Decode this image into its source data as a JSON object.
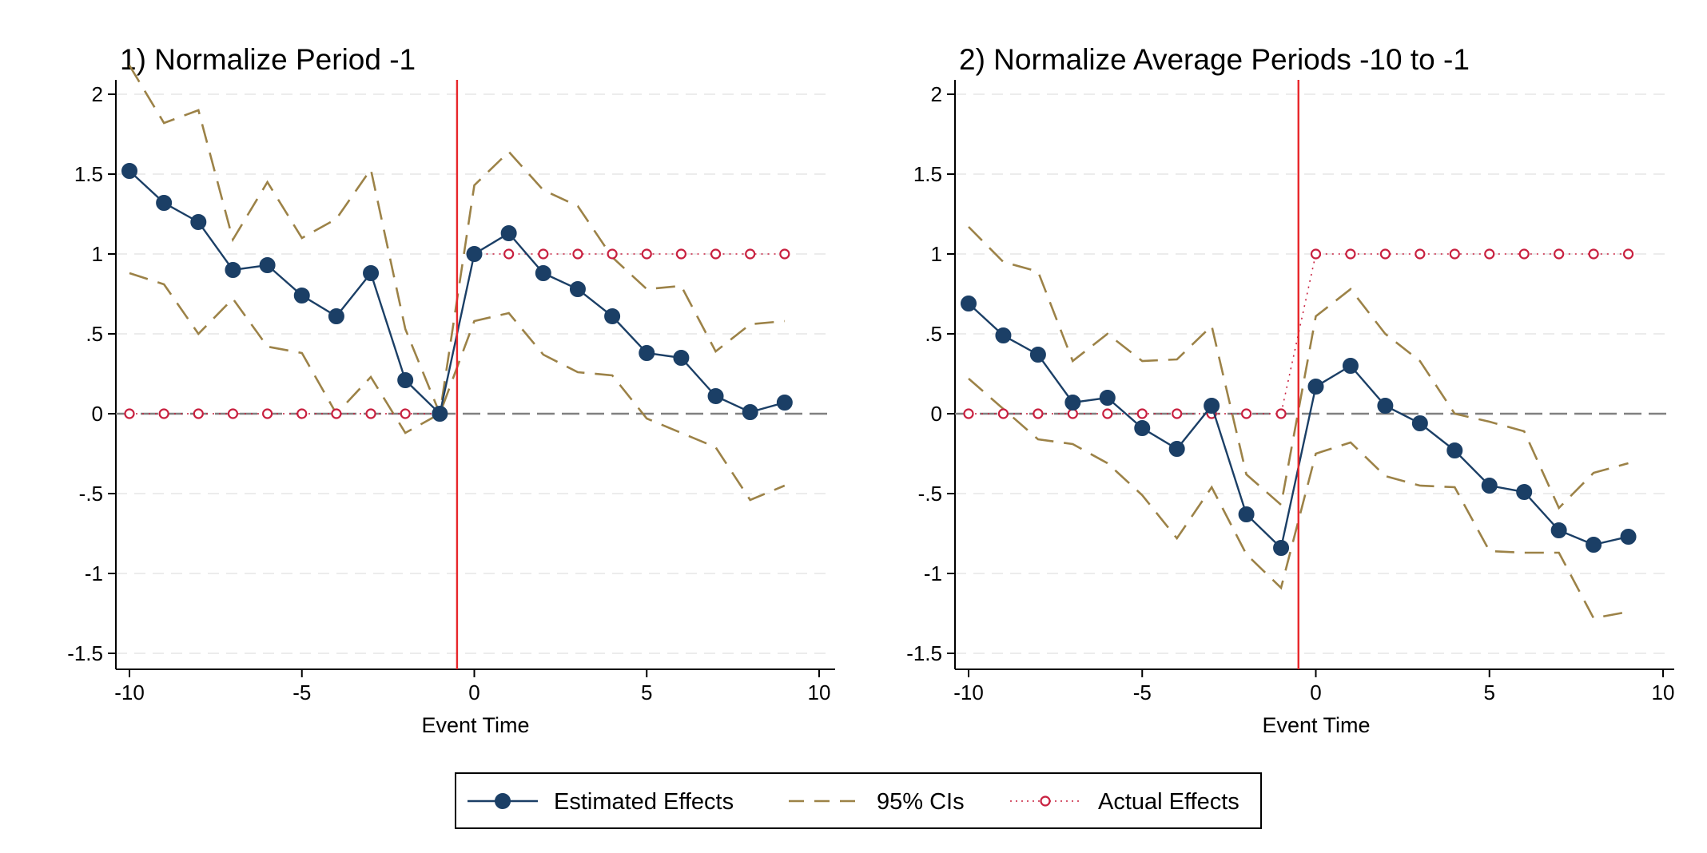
{
  "chart_data": [
    {
      "type": "line",
      "title": "1) Normalize Period -1",
      "xlabel": "Event Time",
      "ylabel": "",
      "xlim": [
        -10,
        10
      ],
      "ylim": [
        -1.5,
        2
      ],
      "xticks": [
        -10,
        -5,
        0,
        5,
        10
      ],
      "xtick_labels": [
        "-10",
        "-5",
        "0",
        "5",
        "10"
      ],
      "yticks": [
        -1.5,
        -1,
        -0.5,
        0,
        0.5,
        1,
        1.5,
        2
      ],
      "ytick_labels": [
        "-1.5",
        "-1",
        "-.5",
        "0",
        ".5",
        "1",
        "1.5",
        "2"
      ],
      "grid": "horizontal dashed",
      "event_line_x": -0.5,
      "zero_line_y": 0,
      "x": [
        -10,
        -9,
        -8,
        -7,
        -6,
        -5,
        -4,
        -3,
        -2,
        -1,
        0,
        1,
        2,
        3,
        4,
        5,
        6,
        7,
        8,
        9
      ],
      "series": [
        {
          "name": "Estimated Effects",
          "style": "solid-markers",
          "color": "#1b3f66",
          "values": [
            1.52,
            1.32,
            1.2,
            0.9,
            0.93,
            0.74,
            0.61,
            0.88,
            0.21,
            0.0,
            1.0,
            1.13,
            0.88,
            0.78,
            0.61,
            0.38,
            0.35,
            0.11,
            0.01,
            0.07
          ]
        },
        {
          "name": "95% CIs",
          "style": "dashed",
          "color": "#9c8247",
          "values": [
            2.18,
            1.82,
            1.9,
            1.09,
            1.45,
            1.1,
            1.22,
            1.53,
            0.53,
            0.0,
            1.43,
            1.64,
            1.4,
            1.3,
            0.98,
            0.78,
            0.8,
            0.39,
            0.56,
            0.58
          ]
        },
        {
          "name": "95% CIs (lower)",
          "style": "dashed",
          "color": "#9c8247",
          "values": [
            0.88,
            0.81,
            0.5,
            0.72,
            0.42,
            0.38,
            0.0,
            0.23,
            -0.12,
            0.0,
            0.58,
            0.63,
            0.37,
            0.26,
            0.24,
            -0.03,
            -0.12,
            -0.21,
            -0.54,
            -0.45
          ]
        },
        {
          "name": "Actual Effects",
          "style": "dotted-hollow",
          "color": "#c8203f",
          "values": [
            0,
            0,
            0,
            0,
            0,
            0,
            0,
            0,
            0,
            0,
            1,
            1,
            1,
            1,
            1,
            1,
            1,
            1,
            1,
            1
          ]
        }
      ]
    },
    {
      "type": "line",
      "title": "2) Normalize Average Periods -10 to -1",
      "xlabel": "Event Time",
      "ylabel": "",
      "xlim": [
        -10,
        10
      ],
      "ylim": [
        -1.5,
        2
      ],
      "xticks": [
        -10,
        -5,
        0,
        5,
        10
      ],
      "xtick_labels": [
        "-10",
        "-5",
        "0",
        "5",
        "10"
      ],
      "yticks": [
        -1.5,
        -1,
        -0.5,
        0,
        0.5,
        1,
        1.5,
        2
      ],
      "ytick_labels": [
        "-1.5",
        "-1",
        "-.5",
        "0",
        ".5",
        "1",
        "1.5",
        "2"
      ],
      "grid": "horizontal dashed",
      "event_line_x": -0.5,
      "zero_line_y": 0,
      "x": [
        -10,
        -9,
        -8,
        -7,
        -6,
        -5,
        -4,
        -3,
        -2,
        -1,
        0,
        1,
        2,
        3,
        4,
        5,
        6,
        7,
        8,
        9
      ],
      "series": [
        {
          "name": "Estimated Effects",
          "style": "solid-markers",
          "color": "#1b3f66",
          "values": [
            0.69,
            0.49,
            0.37,
            0.07,
            0.1,
            -0.09,
            -0.22,
            0.05,
            -0.63,
            -0.84,
            0.17,
            0.3,
            0.05,
            -0.06,
            -0.23,
            -0.45,
            -0.49,
            -0.73,
            -0.82,
            -0.77
          ]
        },
        {
          "name": "95% CIs",
          "style": "dashed",
          "color": "#9c8247",
          "values": [
            1.17,
            0.95,
            0.89,
            0.33,
            0.5,
            0.33,
            0.34,
            0.55,
            -0.38,
            -0.57,
            0.61,
            0.78,
            0.5,
            0.33,
            0.0,
            -0.05,
            -0.11,
            -0.59,
            -0.37,
            -0.31
          ]
        },
        {
          "name": "95% CIs (lower)",
          "style": "dashed",
          "color": "#9c8247",
          "values": [
            0.22,
            0.03,
            -0.16,
            -0.19,
            -0.31,
            -0.51,
            -0.78,
            -0.46,
            -0.88,
            -1.09,
            -0.25,
            -0.18,
            -0.39,
            -0.45,
            -0.46,
            -0.86,
            -0.87,
            -0.87,
            -1.28,
            -1.24
          ]
        },
        {
          "name": "Actual Effects",
          "style": "dotted-hollow",
          "color": "#c8203f",
          "values": [
            0,
            0,
            0,
            0,
            0,
            0,
            0,
            0,
            0,
            0,
            1,
            1,
            1,
            1,
            1,
            1,
            1,
            1,
            1,
            1
          ]
        }
      ]
    }
  ],
  "legend": {
    "placement": "bottom-center",
    "items": [
      {
        "label": "Estimated Effects",
        "style": "solid-markers",
        "color": "#1b3f66"
      },
      {
        "label": "95% CIs",
        "style": "dashed",
        "color": "#9c8247"
      },
      {
        "label": "Actual Effects",
        "style": "dotted-hollow",
        "color": "#c8203f"
      }
    ]
  },
  "colors": {
    "event_line": "#e8262a",
    "zero_line": "#808080",
    "grid": "#e6e6e6",
    "axis": "#000000"
  }
}
